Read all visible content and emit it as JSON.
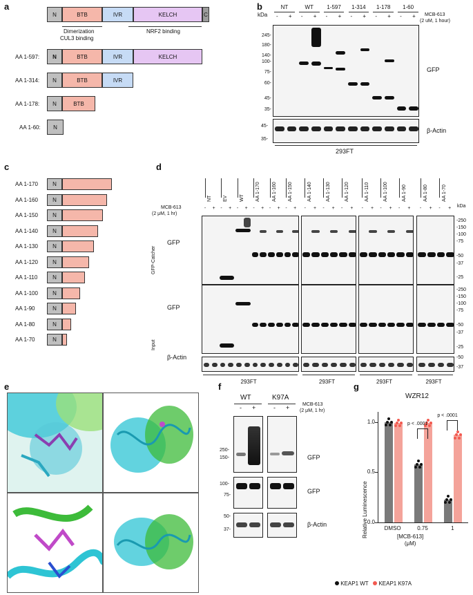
{
  "panels": {
    "a": "a",
    "b": "b",
    "c": "c",
    "d": "d",
    "e": "e",
    "f": "f",
    "g": "g"
  },
  "panel_a": {
    "domains": {
      "n": "N",
      "btb": "BTB",
      "ivr": "IVR",
      "kelch": "KELCH",
      "c": "C"
    },
    "annotations": {
      "dimer": "Dimerization",
      "cul3": "CUL3 binding",
      "nrf2": "NRF2 binding"
    },
    "constructs": [
      {
        "label": "AA 1-597:"
      },
      {
        "label": "AA 1-314:"
      },
      {
        "label": "AA 1-178:"
      },
      {
        "label": "AA 1-60:"
      }
    ],
    "colors": {
      "n": "#bfbfbf",
      "btb": "#f5b7aa",
      "ivr": "#c6dbf5",
      "kelch": "#e6c6f3",
      "c": "#9c9c9c"
    }
  },
  "panel_b": {
    "kda": "kDa",
    "groups": [
      "NT",
      "WT",
      "1-597",
      "1-314",
      "1-178",
      "1-60"
    ],
    "signs": [
      "-",
      "+",
      "-",
      "+",
      "-",
      "+",
      "-",
      "+",
      "-",
      "+",
      "-",
      "+"
    ],
    "treatment": "MCB-613",
    "treatment_detail": "(2 uM, 1 hour)",
    "markers": [
      "245-",
      "180-",
      "140-",
      "100-",
      "75-",
      "60-",
      "45-",
      "35-"
    ],
    "actin_markers": [
      "45-",
      "35-"
    ],
    "blot_label": "GFP",
    "actin_label": "β-Actin",
    "cell_line": "293FT"
  },
  "panel_c": {
    "n": "N",
    "constructs": [
      "AA 1-170",
      "AA 1-160",
      "AA 1-150",
      "AA 1-140",
      "AA 1-130",
      "AA 1-120",
      "AA 1-110",
      "AA 1-100",
      "AA 1-90",
      "AA 1-80",
      "AA 1-70"
    ],
    "lengths": [
      170,
      160,
      150,
      140,
      130,
      120,
      110,
      100,
      90,
      80,
      70
    ]
  },
  "panel_d": {
    "kda": "kDa",
    "treatment": "MCB-613",
    "treatment_detail": "(2 μM, 1 hr)",
    "groups": [
      [
        "NT",
        "EV",
        "WT",
        "AA 1-170",
        "AA 1-160",
        "AA 1-150"
      ],
      [
        "AA 1-140",
        "AA 1-130",
        "AA 1-120"
      ],
      [
        "AA 1-110",
        "AA 1-100",
        "AA 1-90"
      ],
      [
        "AA 1-80",
        "AA 1-70"
      ]
    ],
    "catcher_label": "GFP-Catcher",
    "input_label": "Input",
    "gfp": "GFP",
    "actin": "β-Actin",
    "markers_top": [
      "-250",
      "-150",
      "-100",
      "-75",
      "-50",
      "-37",
      "-25"
    ],
    "markers_mid": [
      "-250",
      "-150",
      "-100",
      "-75",
      "-50",
      "-37",
      "-25"
    ],
    "markers_actin": [
      "-50",
      "-37"
    ],
    "cell_line": "293FT"
  },
  "panel_f": {
    "groups": [
      "WT",
      "K97A"
    ],
    "signs": [
      "-",
      "+",
      "-",
      "+"
    ],
    "treatment": "MCB-613",
    "treatment_detail": "(2 μM, 1 hr)",
    "markers_top": [
      "250-",
      "150-"
    ],
    "markers_mid": [
      "100-",
      "75-"
    ],
    "markers_bot": [
      "50-",
      "37-"
    ],
    "labels": [
      "GFP",
      "GFP",
      "β-Actin"
    ]
  },
  "chart_data": {
    "type": "bar",
    "title": "WZR12",
    "ylabel": "Relative Luminescence",
    "xlabel": "[MCB-613]\n(μM)",
    "categories": [
      "DMSO",
      "0.75",
      "1"
    ],
    "ylim": [
      0,
      1.0
    ],
    "yticks": [
      "0.0",
      "0.5",
      "1.0"
    ],
    "series": [
      {
        "name": "KEAP1 WT",
        "values": [
          1.0,
          0.58,
          0.23
        ],
        "color": "#7a7a7a"
      },
      {
        "name": "KEAP1 K97A",
        "values": [
          0.99,
          0.99,
          0.87
        ],
        "color": "#f4a39a"
      }
    ],
    "annotations": [
      "p < .0001",
      "p < .0001"
    ]
  }
}
